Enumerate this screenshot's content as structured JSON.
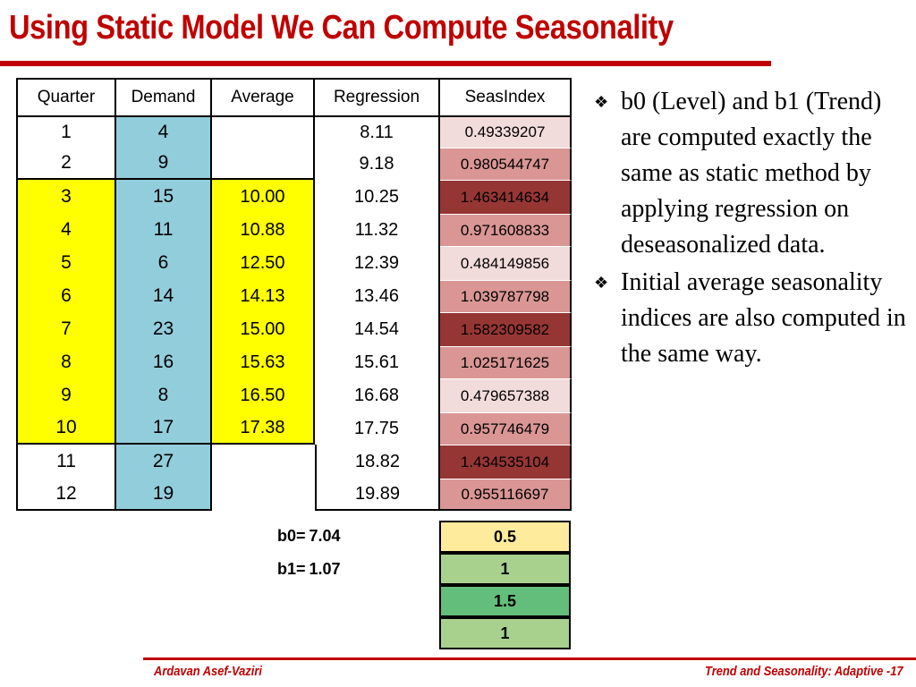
{
  "title": "Using Static Model We Can Compute Seasonality",
  "table": {
    "headers": [
      "Quarter",
      "Demand",
      "Average",
      "Regression",
      "SeasIndex"
    ],
    "rows": [
      {
        "quarter": "1",
        "demand": "4",
        "average": "",
        "regression": "8.11",
        "seas_index": "0.49339207"
      },
      {
        "quarter": "2",
        "demand": "9",
        "average": "",
        "regression": "9.18",
        "seas_index": "0.980544747"
      },
      {
        "quarter": "3",
        "demand": "15",
        "average": "10.00",
        "regression": "10.25",
        "seas_index": "1.463414634"
      },
      {
        "quarter": "4",
        "demand": "11",
        "average": "10.88",
        "regression": "11.32",
        "seas_index": "0.971608833"
      },
      {
        "quarter": "5",
        "demand": "6",
        "average": "12.50",
        "regression": "12.39",
        "seas_index": "0.484149856"
      },
      {
        "quarter": "6",
        "demand": "14",
        "average": "14.13",
        "regression": "13.46",
        "seas_index": "1.039787798"
      },
      {
        "quarter": "7",
        "demand": "23",
        "average": "15.00",
        "regression": "14.54",
        "seas_index": "1.582309582"
      },
      {
        "quarter": "8",
        "demand": "16",
        "average": "15.63",
        "regression": "15.61",
        "seas_index": "1.025171625"
      },
      {
        "quarter": "9",
        "demand": "8",
        "average": "16.50",
        "regression": "16.68",
        "seas_index": "0.479657388"
      },
      {
        "quarter": "10",
        "demand": "17",
        "average": "17.38",
        "regression": "17.75",
        "seas_index": "0.957746479"
      },
      {
        "quarter": "11",
        "demand": "27",
        "average": "",
        "regression": "18.82",
        "seas_index": "1.434535104"
      },
      {
        "quarter": "12",
        "demand": "19",
        "average": "",
        "regression": "19.89",
        "seas_index": "0.955116697"
      }
    ]
  },
  "coefficients": {
    "b0_label": "b0=",
    "b0_value": "7.04",
    "b1_label": "b1=",
    "b1_value": "1.07"
  },
  "seasonality_indices": [
    "0.5",
    "1",
    "1.5",
    "1"
  ],
  "colors": {
    "title_red": "#c00000",
    "average_yellow": "#ffff00",
    "demand_blue": "#92cddc",
    "seas_light": "#f2dcdb",
    "seas_mid": "#d99694",
    "seas_dark": "#963634",
    "index_yellow": "#ffeb9c",
    "index_green_light": "#a9d18e",
    "index_green_mid": "#63be7b"
  },
  "bullets": [
    "b0 (Level) and b1 (Trend)  are computed exactly the same as static method by applying regression on deseasonalized data.",
    "Initial average seasonality indices are also computed in the same way."
  ],
  "footer": {
    "author": "Ardavan Asef-Vaziri",
    "page": "Trend and Seasonality: Adaptive -17"
  }
}
